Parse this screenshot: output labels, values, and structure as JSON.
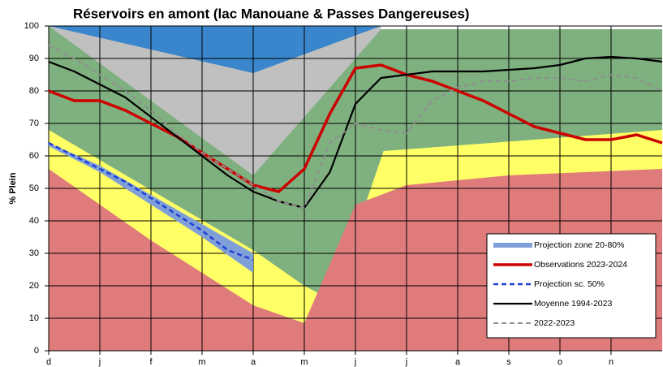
{
  "chart_data": {
    "type": "line",
    "title": "Réservoirs en amont (lac Manouane & Passes Dangereuses)",
    "y_label": "% Plein",
    "xlim": [
      0,
      12
    ],
    "xticks": [
      {
        "value": 0,
        "label": "d"
      },
      {
        "value": 1,
        "label": "j"
      },
      {
        "value": 2,
        "label": "f"
      },
      {
        "value": 3,
        "label": "m"
      },
      {
        "value": 4,
        "label": "a"
      },
      {
        "value": 5,
        "label": "m"
      },
      {
        "value": 6,
        "label": "j"
      },
      {
        "value": 7,
        "label": "j"
      },
      {
        "value": 8,
        "label": "a"
      },
      {
        "value": 9,
        "label": "s"
      },
      {
        "value": 10,
        "label": "o"
      },
      {
        "value": 11,
        "label": "n"
      }
    ],
    "ylim": [
      0,
      100
    ],
    "yticks": [
      0,
      10,
      20,
      30,
      40,
      50,
      60,
      70,
      80,
      90,
      100
    ],
    "grid": true,
    "legend": "lower-right",
    "series": [
      {
        "kind": "area",
        "color": "#3a86cc",
        "x": [
          0,
          6.5
        ],
        "values": [
          100,
          100
        ]
      },
      {
        "kind": "area",
        "color": "#c0c0c0",
        "x": [
          0,
          4,
          6.5
        ],
        "values": [
          100,
          85.5,
          100
        ]
      },
      {
        "kind": "area",
        "color": "#7fb07f",
        "x": [
          0,
          4,
          6.5,
          12
        ],
        "values": [
          100,
          54,
          99,
          99
        ]
      },
      {
        "kind": "area",
        "color": "#ffff66",
        "x": [
          0,
          4,
          5,
          5.55,
          6.55,
          12
        ],
        "values": [
          68,
          31,
          20,
          15.5,
          61.5,
          68
        ]
      },
      {
        "kind": "area",
        "color": "#df7b7b",
        "x": [
          0,
          2,
          4,
          5,
          6,
          7,
          9,
          12
        ],
        "values": [
          56,
          34,
          14,
          8.5,
          45,
          51,
          54,
          56
        ]
      },
      {
        "kind": "band",
        "name": "Projection zone 20-80%",
        "color": "#7f9fd8",
        "x": [
          0,
          1,
          2,
          3,
          4
        ],
        "values": [
          64,
          57,
          48,
          39,
          30
        ],
        "lower": [
          63,
          55,
          45,
          35,
          24
        ]
      },
      {
        "kind": "line",
        "name": "Observations 2023-2024",
        "color": "#cc0000",
        "width": 3.5,
        "style": "solid",
        "x": [
          0,
          0.5,
          1,
          1.5,
          2,
          2.5,
          3,
          3.5,
          4,
          4.5,
          5,
          5.5,
          6,
          6.5,
          7,
          7.5,
          8,
          8.5,
          9,
          9.5,
          10,
          10.5,
          11,
          11.5,
          12
        ],
        "values": [
          80,
          77,
          77,
          74,
          70,
          66,
          61,
          56,
          51,
          49,
          56,
          73,
          87,
          88,
          85,
          83,
          80,
          77,
          73,
          69,
          67,
          65,
          65,
          66.5,
          64
        ]
      },
      {
        "kind": "line",
        "name": "Projection sc. 50%",
        "color": "#1f3fd8",
        "width": 2.5,
        "style": "dashed",
        "x": [
          0,
          0.5,
          1,
          1.5,
          2,
          2.5,
          3,
          3.5,
          4
        ],
        "values": [
          64,
          60,
          56,
          52,
          47,
          42,
          37,
          31,
          28
        ]
      },
      {
        "kind": "line",
        "name": "Moyenne 1994-2023",
        "color": "#000000",
        "width": 2.2,
        "style": "solid",
        "x": [
          0,
          0.5,
          1,
          1.5,
          2,
          2.5,
          3,
          3.5,
          4,
          4.5,
          5,
          5.5,
          6,
          6.5,
          7,
          7.5,
          8,
          8.5,
          9,
          9.5,
          10,
          10.5,
          11,
          11.5,
          12
        ],
        "values": [
          89,
          86,
          82,
          78,
          72,
          66,
          60,
          54,
          49,
          46,
          44,
          55,
          76,
          84,
          85,
          86,
          86,
          86,
          86.5,
          87,
          88,
          90,
          90.5,
          90,
          89
        ]
      },
      {
        "kind": "line",
        "name": "2022-2023",
        "color": "#909090",
        "width": 2,
        "style": "dashed",
        "x": [
          0,
          0.5,
          1,
          1.5,
          2,
          2.5,
          3,
          3.5,
          4,
          4.5,
          5,
          5.5,
          6,
          6.5,
          7,
          7.5,
          8,
          8.5,
          9,
          9.5,
          10,
          10.5,
          11,
          11.5,
          12
        ],
        "values": [
          94,
          90,
          85,
          80,
          74,
          67,
          61,
          56,
          51,
          46,
          44,
          64,
          70,
          68,
          67,
          77,
          81,
          83,
          83,
          84,
          84,
          83,
          85,
          84,
          80
        ]
      }
    ]
  }
}
